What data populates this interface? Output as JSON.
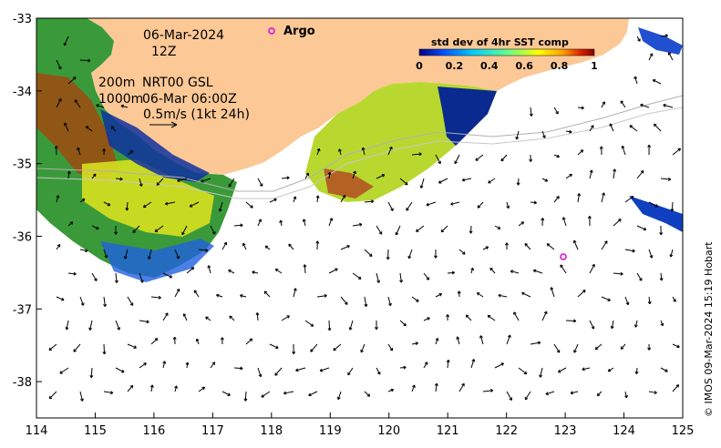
{
  "annotations": {
    "date": "06-Mar-2024",
    "hour": "12Z",
    "depth_200": "200m",
    "depth_1000": "1000m",
    "source": "NRT00 GSL",
    "source_time": "06-Mar 06:00Z",
    "scale": "0.5m/s (1kt 24h)"
  },
  "argo": {
    "label": "Argo",
    "color": "#e000e0"
  },
  "colorbar": {
    "title": "std dev of 4hr SST comp",
    "ticks": [
      "0",
      "0.2",
      "0.4",
      "0.6",
      "0.8",
      "1"
    ],
    "colors": [
      "#00007f",
      "#0050ff",
      "#00c8ff",
      "#60ff90",
      "#ffff00",
      "#ffa000",
      "#e02000",
      "#7f0000"
    ]
  },
  "axes": {
    "x_ticks": [
      "114",
      "115",
      "116",
      "117",
      "118",
      "119",
      "120",
      "121",
      "122",
      "123",
      "124",
      "125"
    ],
    "y_ticks": [
      "-33",
      "-34",
      "-35",
      "-36",
      "-37",
      "-38"
    ],
    "xlim": [
      114,
      125
    ],
    "ylim": [
      -38.5,
      -33
    ]
  },
  "credit": "© IMOS 09-Mar-2024 15:19 Hobart",
  "colors": {
    "land": "#fbc896",
    "ocean": "#ffffff"
  }
}
